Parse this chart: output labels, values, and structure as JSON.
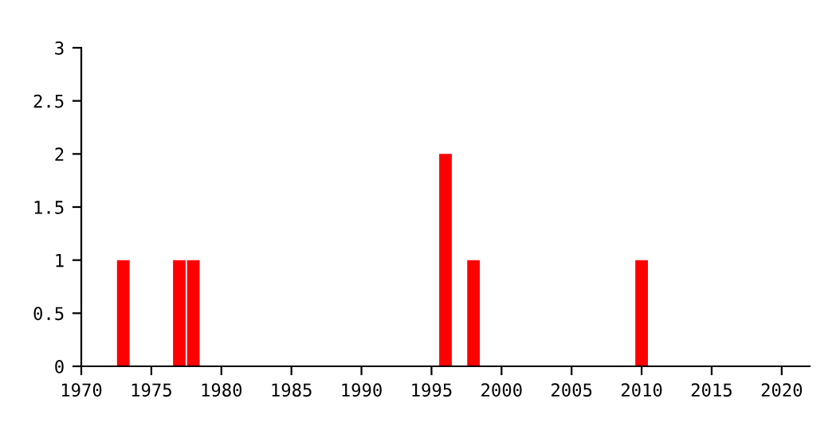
{
  "chart_data": {
    "type": "bar",
    "x": [
      1973,
      1977,
      1978,
      1996,
      1998,
      2010
    ],
    "values": [
      1,
      1,
      1,
      2,
      1,
      1
    ],
    "color": "#ff0000",
    "xlim": [
      1970,
      2022
    ],
    "xticks": [
      1970,
      1975,
      1980,
      1985,
      1990,
      1995,
      2000,
      2005,
      2010,
      2015,
      2020
    ],
    "ylim": [
      0,
      3
    ],
    "yticks": [
      0,
      0.5,
      1,
      1.5,
      2,
      2.5,
      3
    ],
    "grid": false,
    "legend": false
  }
}
